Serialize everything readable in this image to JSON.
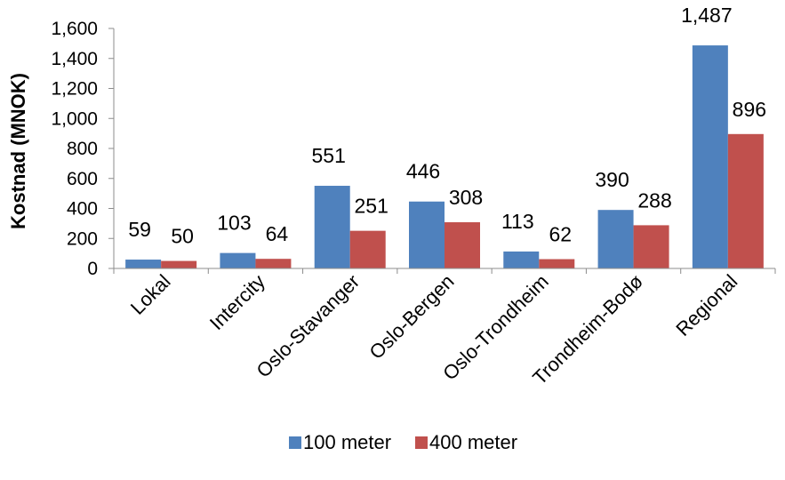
{
  "chart_data": {
    "type": "bar",
    "title": "",
    "xlabel": "",
    "ylabel": "Kostnad (MNOK)",
    "ylim": [
      0,
      1600
    ],
    "yticks": [
      "0",
      "200",
      "400",
      "600",
      "800",
      "1,000",
      "1,200",
      "1,400",
      "1,600"
    ],
    "yticks_values": [
      0,
      200,
      400,
      600,
      800,
      1000,
      1200,
      1400,
      1600
    ],
    "categories": [
      "Lokal",
      "Intercity",
      "Oslo-Stavanger",
      "Oslo-Bergen",
      "Oslo-Trondheim",
      "Trondheim-Bodø",
      "Regional"
    ],
    "series": [
      {
        "name": "100 meter",
        "color": "#4f81bd",
        "values": [
          59,
          103,
          551,
          446,
          113,
          390,
          1487
        ],
        "labels": [
          "59",
          "103",
          "551",
          "446",
          "113",
          "390",
          "1,487"
        ]
      },
      {
        "name": "400 meter",
        "color": "#c0504d",
        "values": [
          50,
          64,
          251,
          308,
          62,
          288,
          896
        ],
        "labels": [
          "50",
          "64",
          "251",
          "308",
          "62",
          "288",
          "896"
        ]
      }
    ],
    "grid": false,
    "legend_position": "bottom"
  }
}
